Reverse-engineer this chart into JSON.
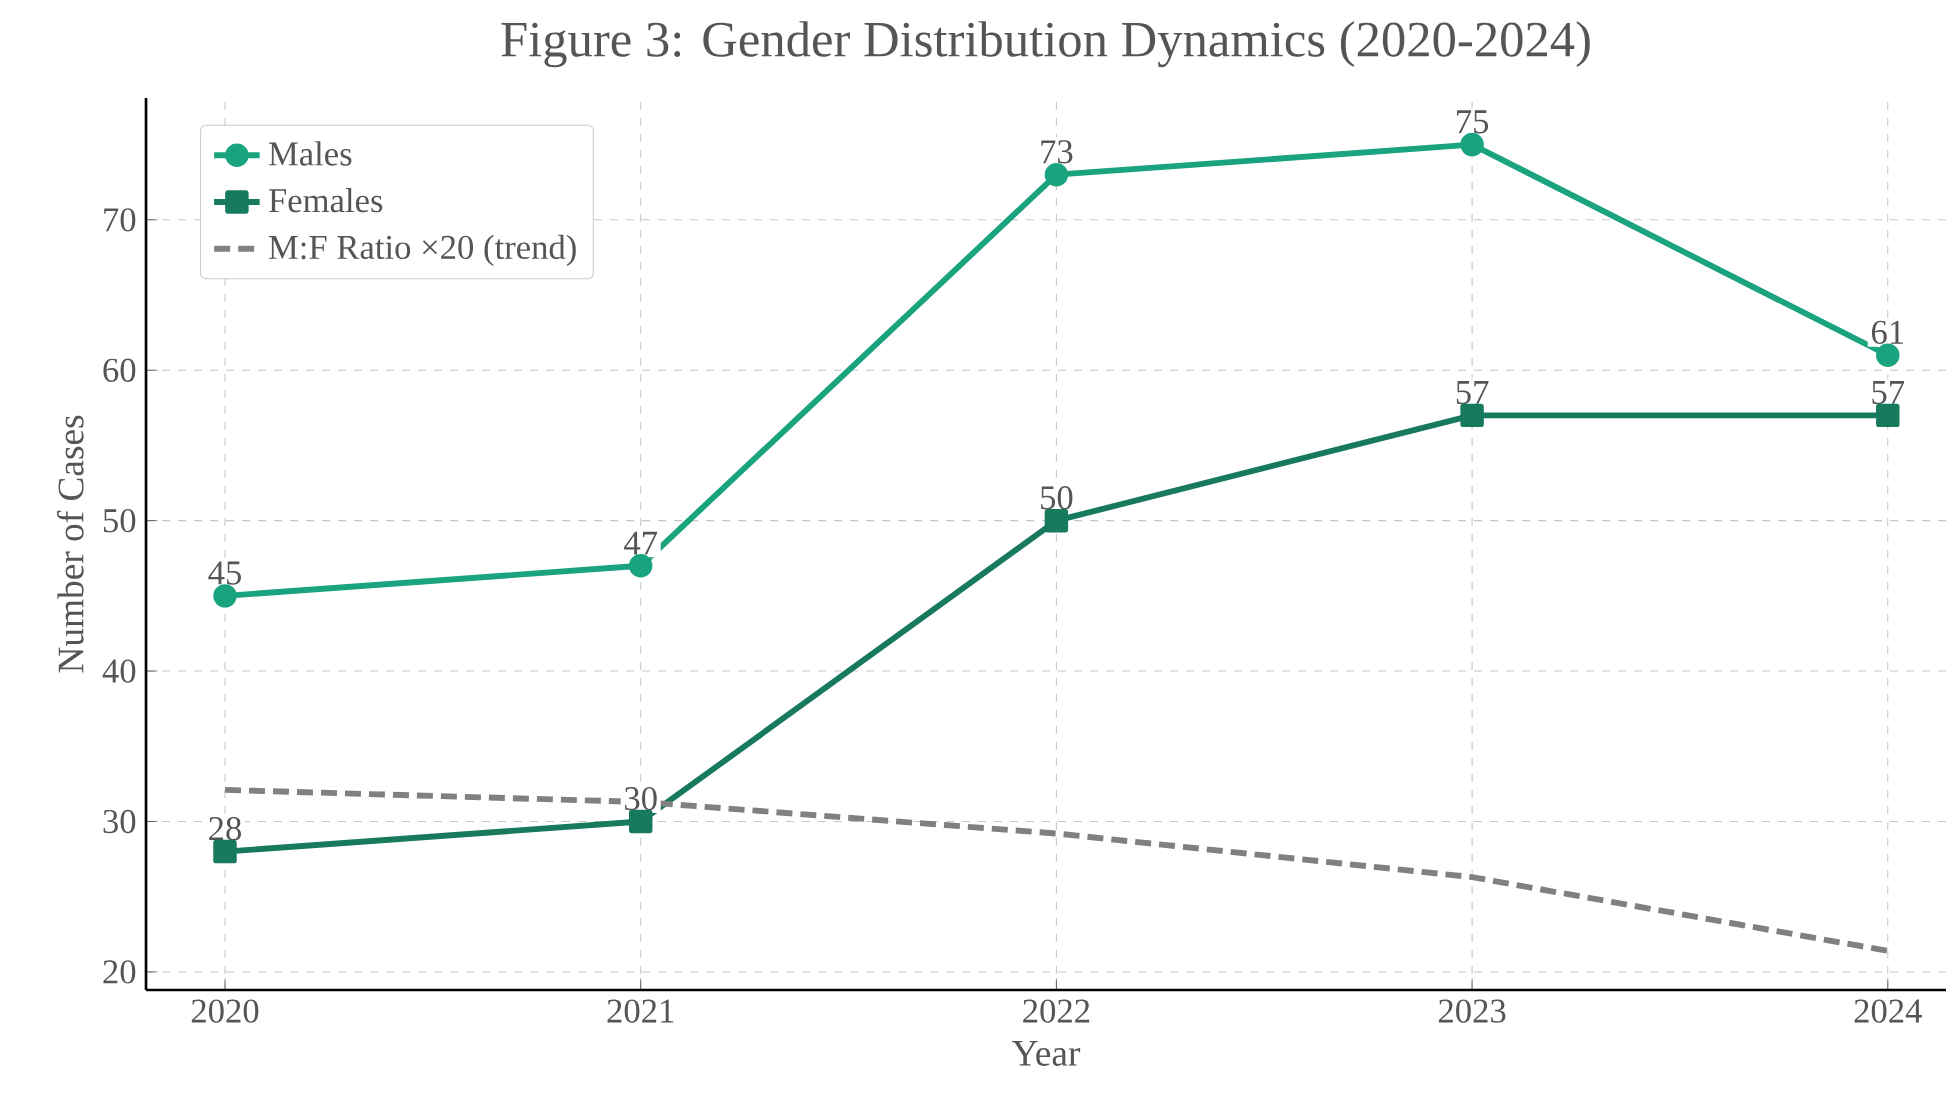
{
  "chart_data": {
    "type": "line",
    "title": "Figure 3: Gender Distribution Dynamics (2020-2024)",
    "xlabel": "Year",
    "ylabel": "Number of Cases",
    "x": [
      2020,
      2021,
      2022,
      2023,
      2024
    ],
    "xlim": [
      2019.81,
      2024.14
    ],
    "ylim": [
      18.8,
      78.1
    ],
    "xticks": [
      2020,
      2021,
      2022,
      2023,
      2024
    ],
    "yticks": [
      20,
      30,
      40,
      50,
      60,
      70
    ],
    "grid": true,
    "legend": "top left",
    "series": [
      {
        "name": "Males",
        "color": "#19a37e",
        "values": [
          45,
          47,
          73,
          75,
          61
        ],
        "marker": "circle",
        "line_style": "solid",
        "value_labels": [
          "45",
          "47",
          "73",
          "75",
          "61"
        ]
      },
      {
        "name": "Females",
        "color": "#177a5e",
        "values": [
          28,
          30,
          50,
          57,
          57
        ],
        "marker": "square",
        "line_style": "solid",
        "value_labels": [
          "28",
          "30",
          "50",
          "57",
          "57"
        ]
      },
      {
        "name": "M:F Ratio ×20 (trend)",
        "color": "#808080",
        "values": [
          32.1,
          31.3,
          29.2,
          26.3,
          21.4
        ],
        "marker": "none",
        "line_style": "dashed"
      }
    ]
  }
}
